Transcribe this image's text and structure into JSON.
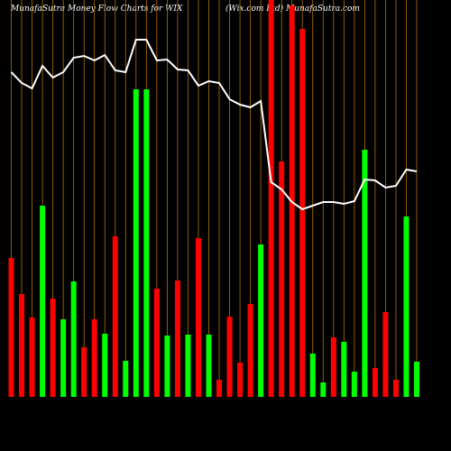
{
  "chart_data": {
    "type": "bar",
    "title": "MunafaSutra  Money Flow  Charts for WIX",
    "subtitle": "(Wix.com Ltd)  MunafaSutra.com",
    "categories": [
      null,
      null,
      null,
      null,
      null,
      null,
      null,
      null,
      null,
      null,
      null,
      null,
      null,
      null,
      null,
      null,
      null,
      null,
      null,
      null,
      null,
      null,
      null,
      null,
      null,
      null,
      null,
      null,
      null,
      null,
      null,
      null,
      null,
      null,
      null,
      null,
      null,
      null,
      null,
      null
    ],
    "values": [
      154,
      114,
      88,
      212,
      109,
      86,
      128,
      55,
      86,
      70,
      178,
      40,
      341,
      341,
      120,
      68,
      129,
      69,
      176,
      69,
      19,
      89,
      38,
      103,
      169,
      460,
      261,
      434,
      408,
      48,
      16,
      66,
      61,
      28,
      274,
      32,
      94,
      19,
      200,
      39
    ],
    "colors": [
      "#ff0000",
      "#ff0000",
      "#ff0000",
      "#00ff00",
      "#ff0000",
      "#00ff00",
      "#00ff00",
      "#ff0000",
      "#ff0000",
      "#00ff00",
      "#ff0000",
      "#00ff00",
      "#00ff00",
      "#00ff00",
      "#ff0000",
      "#00ff00",
      "#ff0000",
      "#00ff00",
      "#ff0000",
      "#00ff00",
      "#ff0000",
      "#ff0000",
      "#ff0000",
      "#ff0000",
      "#00ff00",
      "#ff0000",
      "#ff0000",
      "#ff0000",
      "#ff0000",
      "#00ff00",
      "#00ff00",
      "#ff0000",
      "#00ff00",
      "#00ff00",
      "#00ff00",
      "#ff0000",
      "#ff0000",
      "#ff0000",
      "#00ff00",
      "#00ff00"
    ],
    "line": {
      "color": "#ffffff",
      "values": [
        360,
        348,
        342,
        367,
        354,
        360,
        376,
        378,
        373,
        379,
        362,
        360,
        396,
        396,
        373,
        374,
        363,
        362,
        345,
        350,
        348,
        330,
        324,
        321,
        328,
        238,
        230,
        216,
        208,
        212,
        216,
        216,
        214,
        217,
        241,
        240,
        232,
        234,
        252,
        250
      ]
    },
    "grid_color": "#b5700a",
    "ylim": [
      0,
      440
    ]
  }
}
